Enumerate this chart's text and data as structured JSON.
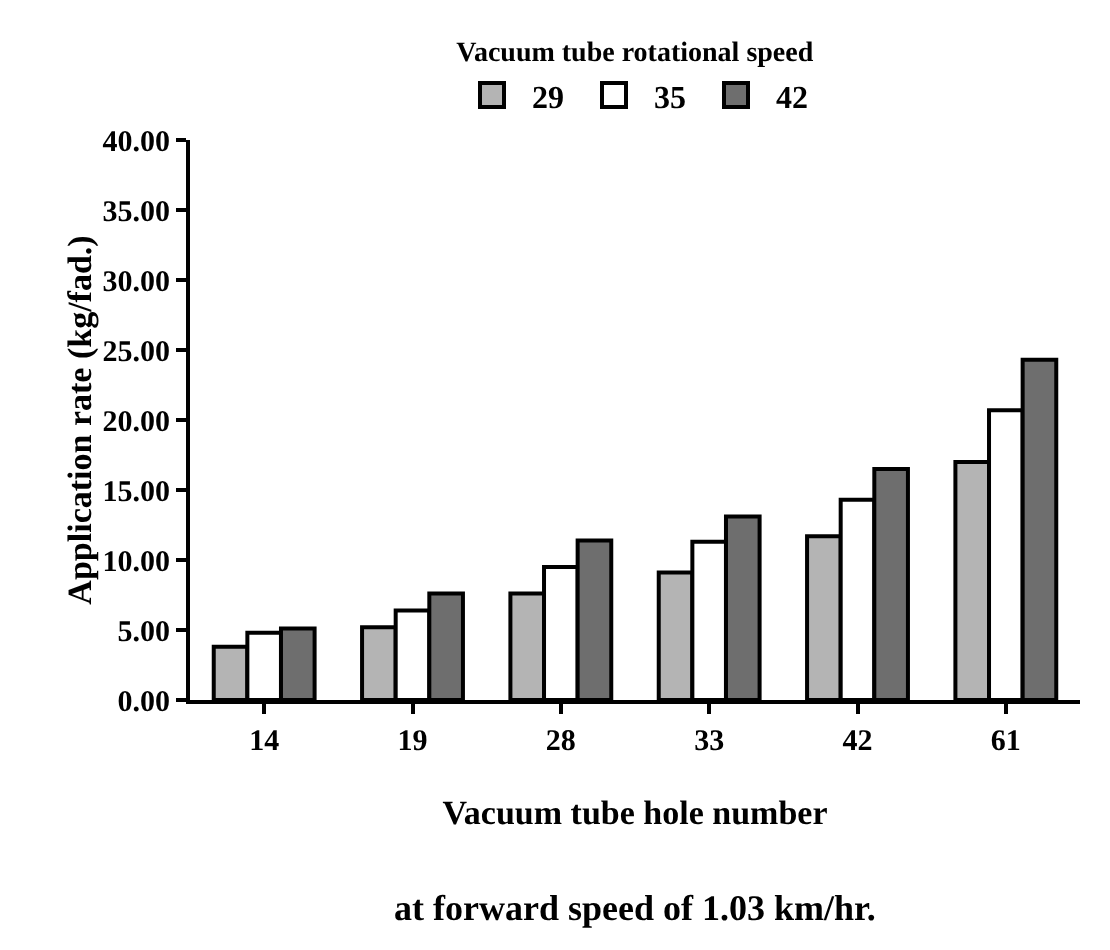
{
  "chart_data": {
    "type": "bar",
    "xlabel": "Vacuum tube hole number",
    "ylabel": "Application rate (kg/fad.)",
    "legend_title": "Vacuum tube rotational speed",
    "legend": "top",
    "grid": false,
    "categories": [
      "14",
      "19",
      "28",
      "33",
      "42",
      "61"
    ],
    "series": [
      {
        "name": "29",
        "color": "#b4b4b4",
        "values": [
          3.8,
          5.2,
          7.6,
          9.1,
          11.7,
          17.0
        ]
      },
      {
        "name": "35",
        "color": "#ffffff",
        "values": [
          4.8,
          6.4,
          9.5,
          11.3,
          14.3,
          20.7
        ]
      },
      {
        "name": "42",
        "color": "#6e6e6e",
        "values": [
          5.1,
          7.6,
          11.4,
          13.1,
          16.5,
          24.3
        ]
      }
    ],
    "ylim": [
      0,
      40
    ],
    "yticks": [
      {
        "value": 0,
        "label": "0.00"
      },
      {
        "value": 5,
        "label": "5.00"
      },
      {
        "value": 10,
        "label": "10.00"
      },
      {
        "value": 15,
        "label": "15.00"
      },
      {
        "value": 20,
        "label": "20.00"
      },
      {
        "value": 25,
        "label": "25.00"
      },
      {
        "value": 30,
        "label": "30.00"
      },
      {
        "value": 35,
        "label": "35.00"
      },
      {
        "value": 40,
        "label": "40.00"
      }
    ],
    "annotations": [
      "at forward speed of 1.03 km/hr."
    ]
  }
}
